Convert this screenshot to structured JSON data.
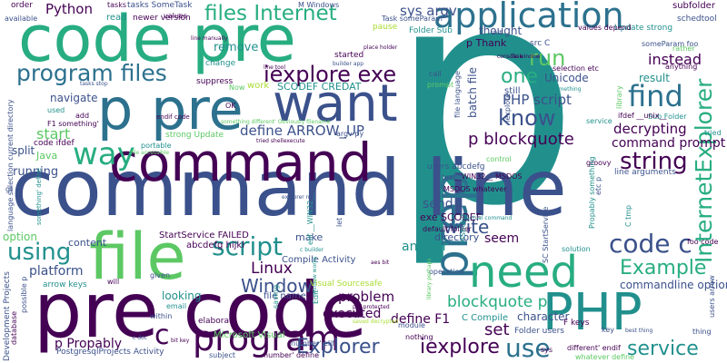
{
  "palette": {
    "dark_purple": "#440154",
    "indigo": "#3b518b",
    "slate_blue": "#2c718e",
    "teal": "#21908d",
    "sea_green": "#27ad81",
    "green": "#5cc863",
    "lime": "#aadc32",
    "yellow": "#fde725"
  },
  "words": [
    {
      "text": "p",
      "color": "#21908d"
    },
    {
      "text": "command line",
      "color": "#3b518b"
    },
    {
      "text": "code pre",
      "color": "#27ad81"
    },
    {
      "text": "pre code",
      "color": "#440154"
    },
    {
      "text": "command",
      "color": "#440154"
    },
    {
      "text": "p pre",
      "color": "#2c718e"
    },
    {
      "text": "file",
      "color": "#5cc863"
    },
    {
      "text": "want",
      "color": "#3b518b"
    },
    {
      "text": "prep",
      "color": "#2c718e"
    },
    {
      "text": "PHP",
      "color": "#21908d"
    },
    {
      "text": "need",
      "color": "#27ad81"
    },
    {
      "text": "program",
      "color": "#440154"
    },
    {
      "text": "application",
      "color": "#2c718e"
    },
    {
      "text": "way",
      "color": "#27ad81"
    },
    {
      "text": "program files",
      "color": "#2c718e"
    },
    {
      "text": "files Internet",
      "color": "#27ad81"
    },
    {
      "text": "iexplore exe",
      "color": "#440154"
    },
    {
      "text": "script",
      "color": "#21908d"
    },
    {
      "text": "find",
      "color": "#2c718e"
    },
    {
      "text": "know",
      "color": "#3b518b"
    },
    {
      "text": "use",
      "color": "#2c718e"
    },
    {
      "text": "using",
      "color": "#21908d"
    },
    {
      "text": "string",
      "color": "#440154"
    },
    {
      "text": "code c",
      "color": "#3b518b"
    },
    {
      "text": "InternetExplorer",
      "color": "#27ad81"
    },
    {
      "text": "Explorer",
      "color": "#3b518b"
    },
    {
      "text": "iexplore",
      "color": "#440154"
    },
    {
      "text": "service",
      "color": "#21908d"
    },
    {
      "text": "Example",
      "color": "#27ad81"
    },
    {
      "text": "run",
      "color": "#5cc863"
    },
    {
      "text": "one",
      "color": "#27ad81"
    },
    {
      "text": "write",
      "color": "#3b518b"
    },
    {
      "text": "Window",
      "color": "#3b518b"
    },
    {
      "text": "p blockquote",
      "color": "#440154"
    },
    {
      "text": "Linux",
      "color": "#440154"
    },
    {
      "text": "blockquote p",
      "color": "#27ad81"
    },
    {
      "text": "start",
      "color": "#5cc863"
    },
    {
      "text": "instead",
      "color": "#440154"
    },
    {
      "text": "Python",
      "color": "#440154"
    },
    {
      "text": "define ARROW_UP",
      "color": "#3b518b"
    },
    {
      "text": "sys argv",
      "color": "#3b518b"
    },
    {
      "text": "PHP script",
      "color": "#3b518b"
    },
    {
      "text": "decrypting",
      "color": "#440154"
    },
    {
      "text": "command prompt",
      "color": "#440154"
    },
    {
      "text": "problem",
      "color": "#440154"
    },
    {
      "text": "executed",
      "color": "#440154"
    },
    {
      "text": "define F1",
      "color": "#440154"
    },
    {
      "text": "answer",
      "color": "#21908d"
    },
    {
      "text": "platform",
      "color": "#3b518b"
    },
    {
      "text": "set",
      "color": "#440154"
    },
    {
      "text": "seem",
      "color": "#440154"
    },
    {
      "text": "p Propably",
      "color": "#440154"
    },
    {
      "text": "running",
      "color": "#3b518b"
    },
    {
      "text": "send",
      "color": "#3b518b"
    },
    {
      "text": "result",
      "color": "#21908d"
    },
    {
      "text": "remove",
      "color": "#21908d"
    },
    {
      "text": "navigate",
      "color": "#3b518b"
    },
    {
      "text": "c",
      "color": "#440154"
    },
    {
      "text": "split",
      "color": "#3b518b"
    },
    {
      "text": "thought",
      "color": "#3b518b"
    },
    {
      "text": "batch file",
      "color": "#3b518b"
    },
    {
      "text": "Unicode",
      "color": "#3b518b"
    },
    {
      "text": "commandline option",
      "color": "#3b518b"
    },
    {
      "text": "character",
      "color": "#3b518b"
    },
    {
      "text": "looking",
      "color": "#21908d"
    },
    {
      "text": "option",
      "color": "#5cc863"
    },
    {
      "text": "content",
      "color": "#3b518b"
    },
    {
      "text": "make",
      "color": "#3b518b"
    },
    {
      "text": "directory",
      "color": "#3b518b"
    },
    {
      "text": "StartService FAILED",
      "color": "#440154"
    },
    {
      "text": "abcdefg hijkl",
      "color": "#440154"
    },
    {
      "text": "Compile Activity",
      "color": "#3b518b"
    },
    {
      "text": "file name",
      "color": "#3b518b"
    },
    {
      "text": "Visual Sourcesafe",
      "color": "#aadc32"
    },
    {
      "text": "exe SCODEF",
      "color": "#440154"
    },
    {
      "text": "SCODEF CREDAT",
      "color": "#21908d"
    },
    {
      "text": "Java",
      "color": "#5cc863"
    },
    {
      "text": "code ifdef",
      "color": "#440154"
    },
    {
      "text": "Microsoft Visual",
      "color": "#5cc863"
    },
    {
      "text": "PostgresqlProjects Activity",
      "color": "#3b518b"
    },
    {
      "text": "Development Projects",
      "color": "#3b518b"
    },
    {
      "text": "arrow keys",
      "color": "#21908d"
    },
    {
      "text": "Folder users",
      "color": "#3b518b"
    },
    {
      "text": "C Compile",
      "color": "#21908d"
    },
    {
      "text": "F keys",
      "color": "#440154"
    },
    {
      "text": "subfolder",
      "color": "#440154"
    },
    {
      "text": "schedtool",
      "color": "#3b518b"
    },
    {
      "text": "order",
      "color": "#440154"
    },
    {
      "text": "tasks SomeTask",
      "color": "#3b518b"
    },
    {
      "text": "newer version",
      "color": "#440154"
    },
    {
      "text": "read",
      "color": "#21908d"
    },
    {
      "text": "available",
      "color": "#3b518b"
    },
    {
      "text": "pause",
      "color": "#aadc32"
    },
    {
      "text": "Folder Sub",
      "color": "#21908d"
    },
    {
      "text": "p Thank",
      "color": "#440154"
    },
    {
      "text": "change",
      "color": "#21908d"
    },
    {
      "text": "suppress",
      "color": "#440154"
    },
    {
      "text": "work",
      "color": "#aadc32"
    },
    {
      "text": "Update strong",
      "color": "#21908d"
    },
    {
      "text": "strong Update",
      "color": "#5cc863"
    },
    {
      "text": "portable",
      "color": "#21908d"
    },
    {
      "text": "Sub Folder",
      "color": "#21908d"
    },
    {
      "text": "users abcdefg",
      "color": "#3b518b"
    },
    {
      "text": "line arguments",
      "color": "#3b518b"
    },
    {
      "text": "default folder",
      "color": "#440154"
    },
    {
      "text": "foo code",
      "color": "#440154"
    },
    {
      "text": "argv py",
      "color": "#3b518b"
    },
    {
      "text": "text",
      "color": "#3b518b"
    },
    {
      "text": "control",
      "color": "#5cc863"
    },
    {
      "text": "groovy",
      "color": "#440154"
    },
    {
      "text": "still",
      "color": "#3b518b"
    },
    {
      "text": "selection etc",
      "color": "#440154"
    },
    {
      "text": "given",
      "color": "#3b518b"
    },
    {
      "text": "within",
      "color": "#3b518b"
    },
    {
      "text": "elaborate",
      "color": "#440154"
    },
    {
      "text": "email",
      "color": "#21908d"
    },
    {
      "text": "subject",
      "color": "#3b518b"
    },
    {
      "text": "thing",
      "color": "#3b518b"
    },
    {
      "text": "users arrow",
      "color": "#3b518b"
    },
    {
      "text": "module",
      "color": "#3b518b"
    },
    {
      "text": "service",
      "color": "#21908d"
    },
    {
      "text": "anything",
      "color": "#440154"
    },
    {
      "text": "rather",
      "color": "#5cc863"
    },
    {
      "text": "tried",
      "color": "#21908d"
    },
    {
      "text": "call",
      "color": "#3b518b"
    },
    {
      "text": "prompt",
      "color": "#5cc863"
    },
    {
      "text": "library",
      "color": "#5cc863"
    },
    {
      "text": "used",
      "color": "#21908d"
    },
    {
      "text": "add",
      "color": "#440154"
    },
    {
      "text": "gt",
      "color": "#3b518b"
    },
    {
      "text": "let",
      "color": "#3b518b"
    },
    {
      "text": "key",
      "color": "#3b518b"
    },
    {
      "text": "Edit",
      "color": "#21908d"
    },
    {
      "text": "nothing",
      "color": "#440154"
    },
    {
      "text": "operation",
      "color": "#3b518b"
    },
    {
      "text": "solution",
      "color": "#21908d"
    },
    {
      "text": "sys",
      "color": "#440154"
    },
    {
      "text": "etc p",
      "color": "#3b518b"
    },
    {
      "text": "OK",
      "color": "#440154"
    },
    {
      "text": "MSBuild",
      "color": "#21908d"
    },
    {
      "text": "ifdef __unix__",
      "color": "#440154"
    },
    {
      "text": "SC StartService",
      "color": "#3b518b"
    },
    {
      "text": "C tmp",
      "color": "#21908d"
    },
    {
      "text": "Propably something",
      "color": "#21908d"
    },
    {
      "text": "language selection current directory",
      "color": "#3b518b"
    },
    {
      "text": "possible p",
      "color": "#3b518b"
    },
    {
      "text": "database",
      "color": "#440154"
    },
    {
      "text": "will",
      "color": "#440154"
    },
    {
      "text": "number' define",
      "color": "#440154"
    },
    {
      "text": "number' elif",
      "color": "#3b518b"
    },
    {
      "text": "saving",
      "color": "#21908d"
    },
    {
      "text": "MSDOS whatever",
      "color": "#440154"
    },
    {
      "text": "__WIN32__ MSDOS",
      "color": "#440154"
    },
    {
      "text": "elif __WIN32__",
      "color": "#21908d"
    },
    {
      "text": "values depend",
      "color": "#440154"
    },
    {
      "text": "Task someParam",
      "color": "#3b518b"
    },
    {
      "text": "someParam foo",
      "color": "#3b518b"
    },
    {
      "text": "tasks",
      "color": "#440154"
    },
    {
      "text": "values",
      "color": "#440154"
    },
    {
      "text": "different' endif",
      "color": "#440154"
    },
    {
      "text": "whatever define",
      "color": "#5cc863"
    },
    {
      "text": "M Windows",
      "color": "#3b518b"
    },
    {
      "text": "src C",
      "color": "#3b518b"
    },
    {
      "text": "started",
      "color": "#440154"
    },
    {
      "text": "Now",
      "color": "#5cc863"
    },
    {
      "text": "file language",
      "color": "#3b518b"
    },
    {
      "text": "Iexplore",
      "color": "#3b518b"
    },
    {
      "text": "F1 something'",
      "color": "#440154"
    },
    {
      "text": "something' define",
      "color": "#21908d"
    },
    {
      "text": "endif code",
      "color": "#440154"
    },
    {
      "text": "line manually",
      "color": "#440154"
    },
    {
      "text": "place holder",
      "color": "#440154"
    },
    {
      "text": "builder app",
      "color": "#3b518b"
    },
    {
      "text": "console window",
      "color": "#440154"
    },
    {
      "text": "know something",
      "color": "#21908d"
    },
    {
      "text": "line tool",
      "color": "#440154"
    },
    {
      "text": "tried shellexecute",
      "color": "#440154"
    },
    {
      "text": "explorer n",
      "color": "#3b518b"
    },
    {
      "text": "actual command",
      "color": "#21908d"
    },
    {
      "text": "c doc",
      "color": "#3b518b"
    },
    {
      "text": "bit key",
      "color": "#440154"
    },
    {
      "text": "window works",
      "color": "#21908d"
    },
    {
      "text": "pdf protected",
      "color": "#440154"
    },
    {
      "text": "saved decrypted",
      "color": "#aadc32"
    },
    {
      "text": "library perhaps",
      "color": "#5cc863"
    },
    {
      "text": "aes bit",
      "color": "#440154"
    },
    {
      "text": "best thing",
      "color": "#3b518b"
    },
    {
      "text": "c builder",
      "color": "#21908d"
    },
    {
      "text": "file accessible",
      "color": "#5cc863"
    },
    {
      "text": "stuff",
      "color": "#3b518b"
    },
    {
      "text": "Task",
      "color": "#440154"
    },
    {
      "text": "tasks stop",
      "color": "#3b518b"
    },
    {
      "text": "something different' Obviously filename",
      "color": "#5cc863"
    },
    {
      "text": "for aiii",
      "color": "#5cc863"
    }
  ]
}
